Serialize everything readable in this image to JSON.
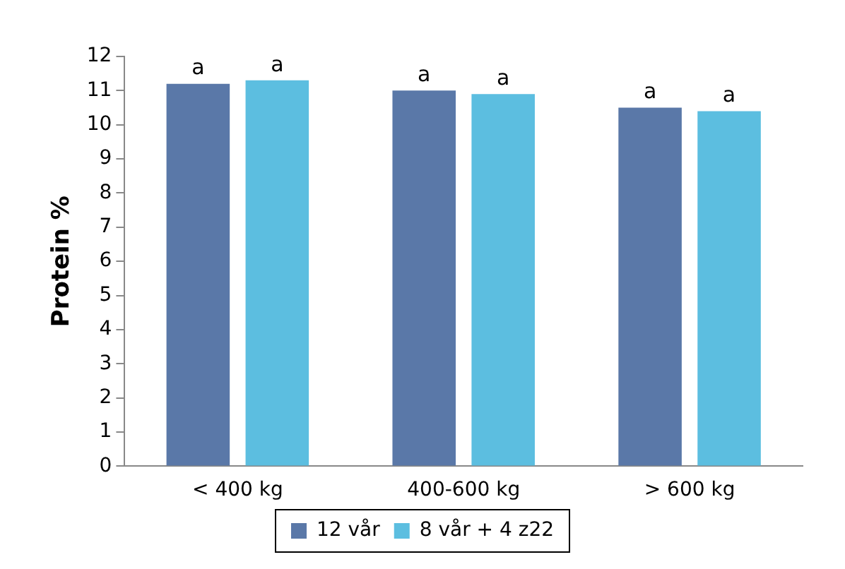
{
  "chart_data": {
    "type": "bar",
    "ylabel": "Protein %",
    "categories": [
      "< 400 kg",
      "400-600 kg",
      "> 600 kg"
    ],
    "series": [
      {
        "name": "12 vår",
        "color": "#5a78a8",
        "values": [
          11.2,
          11.0,
          10.5
        ],
        "value_labels": [
          "a",
          "a",
          "a"
        ]
      },
      {
        "name": "8 vår + 4 z22",
        "color": "#5cbee0",
        "values": [
          11.3,
          10.9,
          10.4
        ],
        "value_labels": [
          "a",
          "a",
          "a"
        ]
      }
    ],
    "ylim": [
      0,
      12
    ],
    "yticks": [
      0,
      1,
      2,
      3,
      4,
      5,
      6,
      7,
      8,
      9,
      10,
      11,
      12
    ],
    "grid": false,
    "legend": "bottom"
  }
}
